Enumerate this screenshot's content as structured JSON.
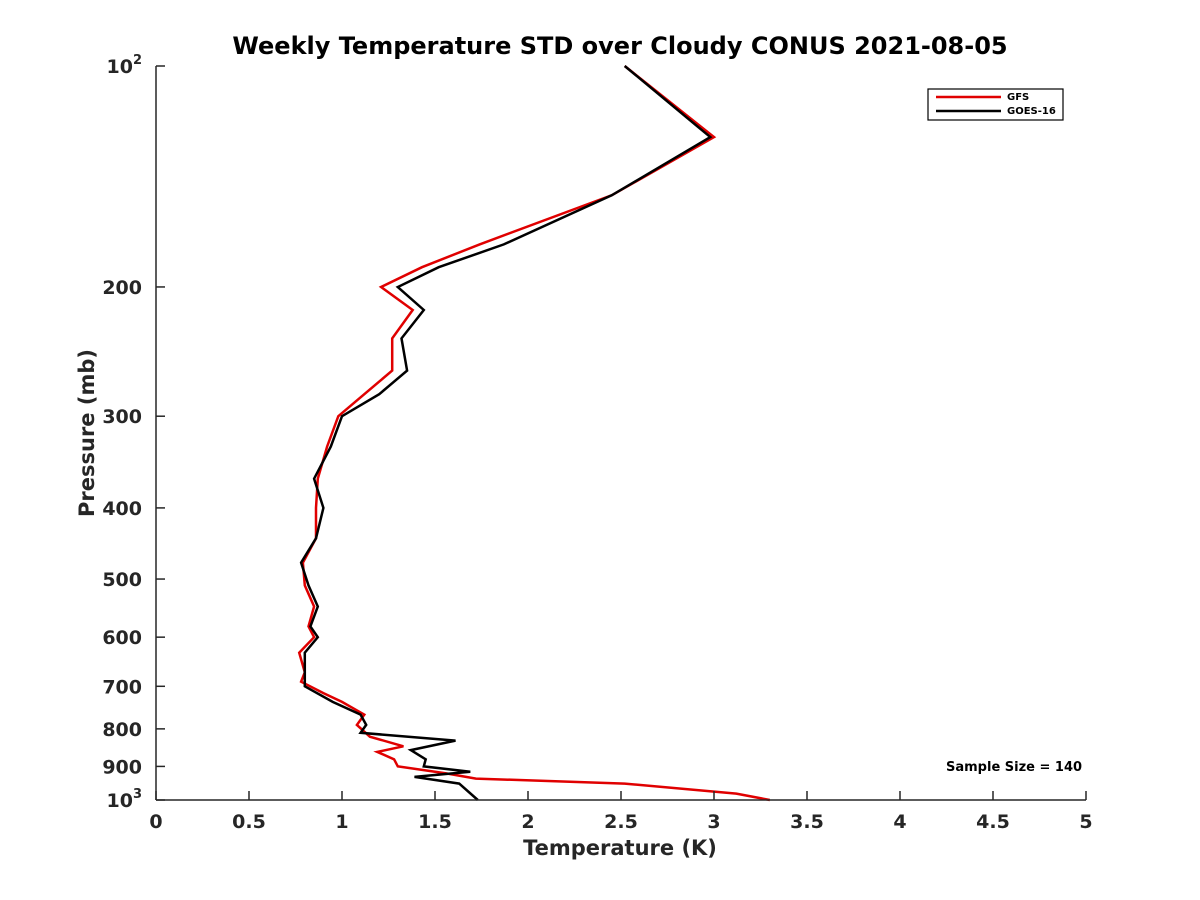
{
  "chart_data": {
    "type": "line",
    "title": "Weekly Temperature STD over Cloudy CONUS 2021-08-05",
    "xlabel": "Temperature (K)",
    "ylabel": "Pressure (mb)",
    "xlim": [
      0,
      5
    ],
    "ylim": [
      100,
      1000
    ],
    "y_scale": "log",
    "y_reversed": true,
    "x_ticks": [
      "0",
      "0.5",
      "1",
      "1.5",
      "2",
      "2.5",
      "3",
      "3.5",
      "4",
      "4.5",
      "5"
    ],
    "y_ticks": [
      {
        "value": 100,
        "base": "10",
        "exp": "2"
      },
      {
        "value": 200,
        "label": "200"
      },
      {
        "value": 300,
        "label": "300"
      },
      {
        "value": 400,
        "label": "400"
      },
      {
        "value": 500,
        "label": "500"
      },
      {
        "value": 600,
        "label": "600"
      },
      {
        "value": 700,
        "label": "700"
      },
      {
        "value": 800,
        "label": "800"
      },
      {
        "value": 900,
        "label": "900"
      },
      {
        "value": 1000,
        "base": "10",
        "exp": "3"
      }
    ],
    "grid": false,
    "legend_position": "top-right",
    "annotation": "Sample Size = 140",
    "series": [
      {
        "name": "GFS",
        "color": "#e00000",
        "points": [
          [
            2.52,
            100
          ],
          [
            3.0,
            125
          ],
          [
            2.45,
            150
          ],
          [
            1.74,
            175
          ],
          [
            1.43,
            188
          ],
          [
            1.21,
            200
          ],
          [
            1.38,
            215
          ],
          [
            1.27,
            235
          ],
          [
            1.27,
            260
          ],
          [
            1.12,
            280
          ],
          [
            0.98,
            300
          ],
          [
            0.92,
            330
          ],
          [
            0.87,
            365
          ],
          [
            0.86,
            400
          ],
          [
            0.86,
            440
          ],
          [
            0.79,
            475
          ],
          [
            0.8,
            510
          ],
          [
            0.85,
            545
          ],
          [
            0.82,
            580
          ],
          [
            0.85,
            600
          ],
          [
            0.77,
            630
          ],
          [
            0.8,
            670
          ],
          [
            0.78,
            690
          ],
          [
            0.9,
            715
          ],
          [
            1.0,
            735
          ],
          [
            1.12,
            765
          ],
          [
            1.08,
            790
          ],
          [
            1.15,
            820
          ],
          [
            1.33,
            845
          ],
          [
            1.19,
            860
          ],
          [
            1.28,
            880
          ],
          [
            1.3,
            900
          ],
          [
            1.56,
            920
          ],
          [
            1.72,
            935
          ],
          [
            2.52,
            950
          ],
          [
            3.12,
            980
          ],
          [
            3.3,
            1000
          ]
        ]
      },
      {
        "name": "GOES-16",
        "color": "#000000",
        "points": [
          [
            2.52,
            100
          ],
          [
            2.98,
            125
          ],
          [
            2.45,
            150
          ],
          [
            1.87,
            175
          ],
          [
            1.52,
            188
          ],
          [
            1.3,
            200
          ],
          [
            1.44,
            215
          ],
          [
            1.32,
            235
          ],
          [
            1.35,
            260
          ],
          [
            1.2,
            280
          ],
          [
            1.0,
            300
          ],
          [
            0.94,
            330
          ],
          [
            0.85,
            365
          ],
          [
            0.9,
            400
          ],
          [
            0.86,
            440
          ],
          [
            0.78,
            475
          ],
          [
            0.82,
            510
          ],
          [
            0.87,
            545
          ],
          [
            0.83,
            580
          ],
          [
            0.87,
            600
          ],
          [
            0.8,
            630
          ],
          [
            0.8,
            670
          ],
          [
            0.8,
            700
          ],
          [
            0.95,
            735
          ],
          [
            1.1,
            765
          ],
          [
            1.13,
            790
          ],
          [
            1.1,
            810
          ],
          [
            1.61,
            830
          ],
          [
            1.37,
            855
          ],
          [
            1.45,
            880
          ],
          [
            1.44,
            900
          ],
          [
            1.69,
            915
          ],
          [
            1.39,
            930
          ],
          [
            1.63,
            950
          ],
          [
            1.73,
            1000
          ]
        ]
      }
    ]
  }
}
